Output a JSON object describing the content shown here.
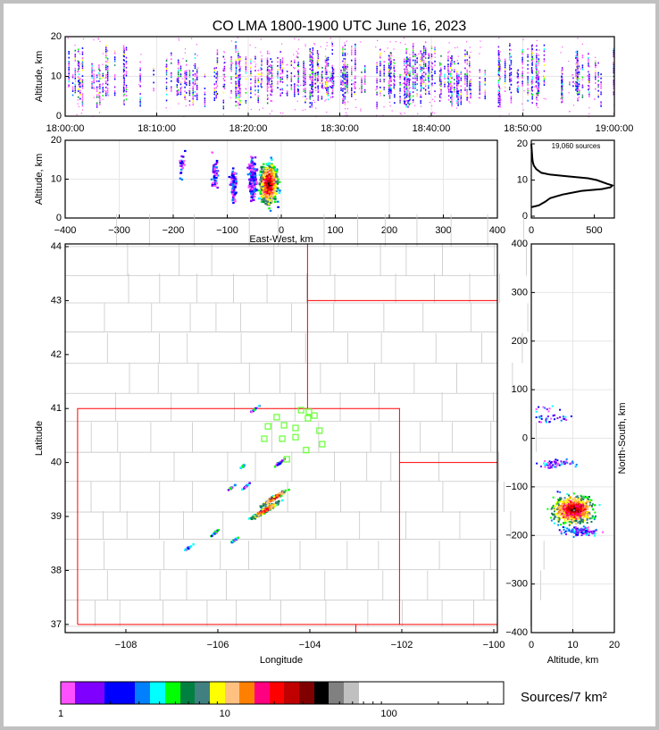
{
  "chart_data": {
    "type": "heatmap",
    "title": "CO LMA 1800-1900 UTC June 16, 2023",
    "colorbar": {
      "label": "Sources/7 km²",
      "scale": "log",
      "range": [
        1,
        500
      ],
      "ticks": [
        {
          "v": 1,
          "label": "1"
        },
        {
          "v": 10,
          "label": "10"
        },
        {
          "v": 100,
          "label": "100"
        }
      ],
      "colors": [
        "#ff50ff",
        "#8000ff",
        "#0000ff",
        "#0080ff",
        "#00ffff",
        "#00ff00",
        "#008040",
        "#408080",
        "#ffff00",
        "#ffc080",
        "#ff8000",
        "#ff0080",
        "#ff0000",
        "#c00000",
        "#800000",
        "#000000",
        "#808080",
        "#c0c0c0",
        "#ffffff"
      ]
    },
    "panels": [
      {
        "id": "time-height",
        "ylabel": "Altitude, km",
        "xlim_min": [
          0,
          60
        ],
        "ylim": [
          0,
          20
        ],
        "xticks": [
          {
            "v": 0,
            "label": "18:00:00"
          },
          {
            "v": 10,
            "label": "18:10:00"
          },
          {
            "v": 20,
            "label": "18:20:00"
          },
          {
            "v": 30,
            "label": "18:30:00"
          },
          {
            "v": 40,
            "label": "18:40:00"
          },
          {
            "v": 50,
            "label": "18:50:00"
          },
          {
            "v": 60,
            "label": "19:00:00"
          }
        ],
        "yticks": [
          {
            "v": 0,
            "label": "0"
          },
          {
            "v": 10,
            "label": "10"
          },
          {
            "v": 20,
            "label": "20"
          }
        ]
      },
      {
        "id": "east-west-altitude",
        "xlabel": "East-West, km",
        "ylabel": "Altitude, km",
        "xlim": [
          -400,
          400
        ],
        "ylim": [
          0,
          20
        ],
        "xticks": [
          {
            "v": -400,
            "label": "−400"
          },
          {
            "v": -300,
            "label": "−300"
          },
          {
            "v": -200,
            "label": "−200"
          },
          {
            "v": -100,
            "label": "−100"
          },
          {
            "v": 0,
            "label": "0"
          },
          {
            "v": 100,
            "label": "100"
          },
          {
            "v": 200,
            "label": "200"
          },
          {
            "v": 300,
            "label": "300"
          },
          {
            "v": 400,
            "label": "400"
          }
        ],
        "yticks": [
          {
            "v": 0,
            "label": "0"
          },
          {
            "v": 10,
            "label": "10"
          },
          {
            "v": 20,
            "label": "20"
          }
        ],
        "clusters": [
          {
            "x": -25,
            "alt": 9,
            "n": 900
          },
          {
            "x": -55,
            "alt": 10,
            "n": 250
          },
          {
            "x": -90,
            "alt": 9,
            "n": 70
          },
          {
            "x": -125,
            "alt": 12,
            "n": 40
          },
          {
            "x": -185,
            "alt": 14,
            "n": 20
          }
        ]
      },
      {
        "id": "altitude-histogram",
        "annotation": "19,060 sources",
        "xlim": [
          0,
          660
        ],
        "ylim": [
          0,
          20
        ],
        "xticks": [
          {
            "v": 0,
            "label": "0"
          },
          {
            "v": 500,
            "label": "500"
          }
        ],
        "yticks": [
          {
            "v": 0,
            "label": "0"
          },
          {
            "v": 10,
            "label": "10"
          },
          {
            "v": 20,
            "label": "20"
          }
        ],
        "profile": [
          [
            2.5,
            0
          ],
          [
            3,
            60
          ],
          [
            4,
            110
          ],
          [
            5,
            150
          ],
          [
            5.5,
            200
          ],
          [
            6,
            250
          ],
          [
            7,
            400
          ],
          [
            7.5,
            560
          ],
          [
            8,
            630
          ],
          [
            8.5,
            645
          ],
          [
            9,
            600
          ],
          [
            10,
            520
          ],
          [
            10.5,
            450
          ],
          [
            11,
            300
          ],
          [
            11.5,
            150
          ],
          [
            12,
            80
          ],
          [
            13,
            40
          ],
          [
            14,
            20
          ],
          [
            15,
            12
          ],
          [
            16,
            8
          ],
          [
            18,
            4
          ],
          [
            20,
            0
          ]
        ]
      },
      {
        "id": "plan-view-map",
        "xlabel": "Longitude",
        "ylabel": "Latitude",
        "xlim": [
          -109.32,
          -99.92
        ],
        "ylim": [
          36.85,
          44.05
        ],
        "xticks": [
          {
            "v": -108,
            "label": "−108"
          },
          {
            "v": -106,
            "label": "−106"
          },
          {
            "v": -104,
            "label": "−104"
          },
          {
            "v": -102,
            "label": "−102"
          },
          {
            "v": -100,
            "label": "−100"
          }
        ],
        "yticks": [
          {
            "v": 37,
            "label": "37"
          },
          {
            "v": 38,
            "label": "38"
          },
          {
            "v": 39,
            "label": "39"
          },
          {
            "v": 40,
            "label": "40"
          },
          {
            "v": 41,
            "label": "41"
          },
          {
            "v": 42,
            "label": "42"
          },
          {
            "v": 43,
            "label": "43"
          },
          {
            "v": 44,
            "label": "44"
          }
        ],
        "stations": [
          [
            -104.72,
            40.84
          ],
          [
            -104.19,
            40.97
          ],
          [
            -104.02,
            40.94
          ],
          [
            -103.9,
            40.87
          ],
          [
            -104.04,
            40.82
          ],
          [
            -104.91,
            40.67
          ],
          [
            -104.56,
            40.69
          ],
          [
            -104.31,
            40.64
          ],
          [
            -103.79,
            40.59
          ],
          [
            -104.99,
            40.44
          ],
          [
            -104.6,
            40.44
          ],
          [
            -104.31,
            40.47
          ],
          [
            -103.73,
            40.34
          ],
          [
            -104.08,
            40.23
          ],
          [
            -104.5,
            40.06
          ]
        ],
        "source_clusters": [
          {
            "lon": -105.0,
            "lat": 39.13,
            "n": 600
          },
          {
            "lon": -104.8,
            "lat": 39.36,
            "n": 150
          },
          {
            "lon": -105.24,
            "lat": 40.99,
            "n": 20
          },
          {
            "lon": -104.68,
            "lat": 40.01,
            "n": 40
          },
          {
            "lon": -105.46,
            "lat": 39.96,
            "n": 15
          },
          {
            "lon": -105.4,
            "lat": 39.58,
            "n": 15
          },
          {
            "lon": -105.73,
            "lat": 39.55,
            "n": 12
          },
          {
            "lon": -106.08,
            "lat": 38.72,
            "n": 25
          },
          {
            "lon": -105.65,
            "lat": 38.59,
            "n": 20
          },
          {
            "lon": -106.66,
            "lat": 38.44,
            "n": 15
          }
        ]
      },
      {
        "id": "north-south-altitude",
        "xlabel": "Altitude, km",
        "ylabel": "North-South, km",
        "xlim": [
          0,
          20
        ],
        "ylim": [
          -400,
          400
        ],
        "xticks": [
          {
            "v": 0,
            "label": "0"
          },
          {
            "v": 10,
            "label": "10"
          },
          {
            "v": 20,
            "label": "20"
          }
        ],
        "yticks": [
          {
            "v": -400,
            "label": "−400"
          },
          {
            "v": -300,
            "label": "−300"
          },
          {
            "v": -200,
            "label": "−200"
          },
          {
            "v": -100,
            "label": "−100"
          },
          {
            "v": 0,
            "label": "0"
          },
          {
            "v": 100,
            "label": "100"
          },
          {
            "v": 200,
            "label": "200"
          },
          {
            "v": 300,
            "label": "300"
          },
          {
            "v": 400,
            "label": "400"
          }
        ],
        "clusters": [
          {
            "y": -145,
            "alt": 10,
            "n": 900
          },
          {
            "y": -190,
            "alt": 12,
            "n": 120
          },
          {
            "y": -50,
            "alt": 6,
            "n": 60
          },
          {
            "y": 42,
            "alt": 5,
            "n": 30
          },
          {
            "y": 63,
            "alt": 4,
            "n": 10
          }
        ]
      }
    ]
  }
}
